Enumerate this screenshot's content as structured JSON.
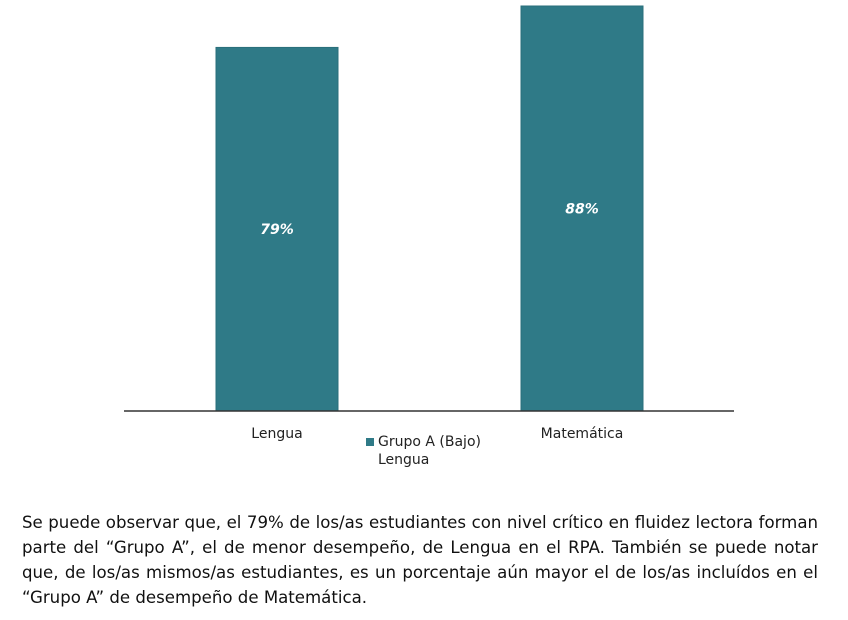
{
  "chart_data": {
    "type": "bar",
    "categories": [
      "Lengua",
      "Matemática"
    ],
    "series": [
      {
        "name": "Grupo A (Bajo)",
        "values": [
          79,
          88
        ],
        "value_labels": [
          "79%",
          "88%"
        ],
        "color": "#2f7a87"
      }
    ],
    "ylim": [
      0,
      88
    ],
    "grid": false,
    "legend": {
      "placement": "bottom-center",
      "series_name": "Grupo A (Bajo)",
      "sub_label": "Lengua"
    }
  },
  "caption": "Se puede observar que, el 79% de los/as estudiantes con nivel crítico en fluidez lectora forman parte del “Grupo A”, el de menor desempeño, de Lengua en el RPA. También se puede notar que, de los/as mismos/as estudiantes, es un porcentaje aún mayor el de los/as incluídos en el “Grupo A” de desempeño de Matemática.",
  "colors": {
    "bar": "#2f7a87",
    "axis": "#333333"
  }
}
